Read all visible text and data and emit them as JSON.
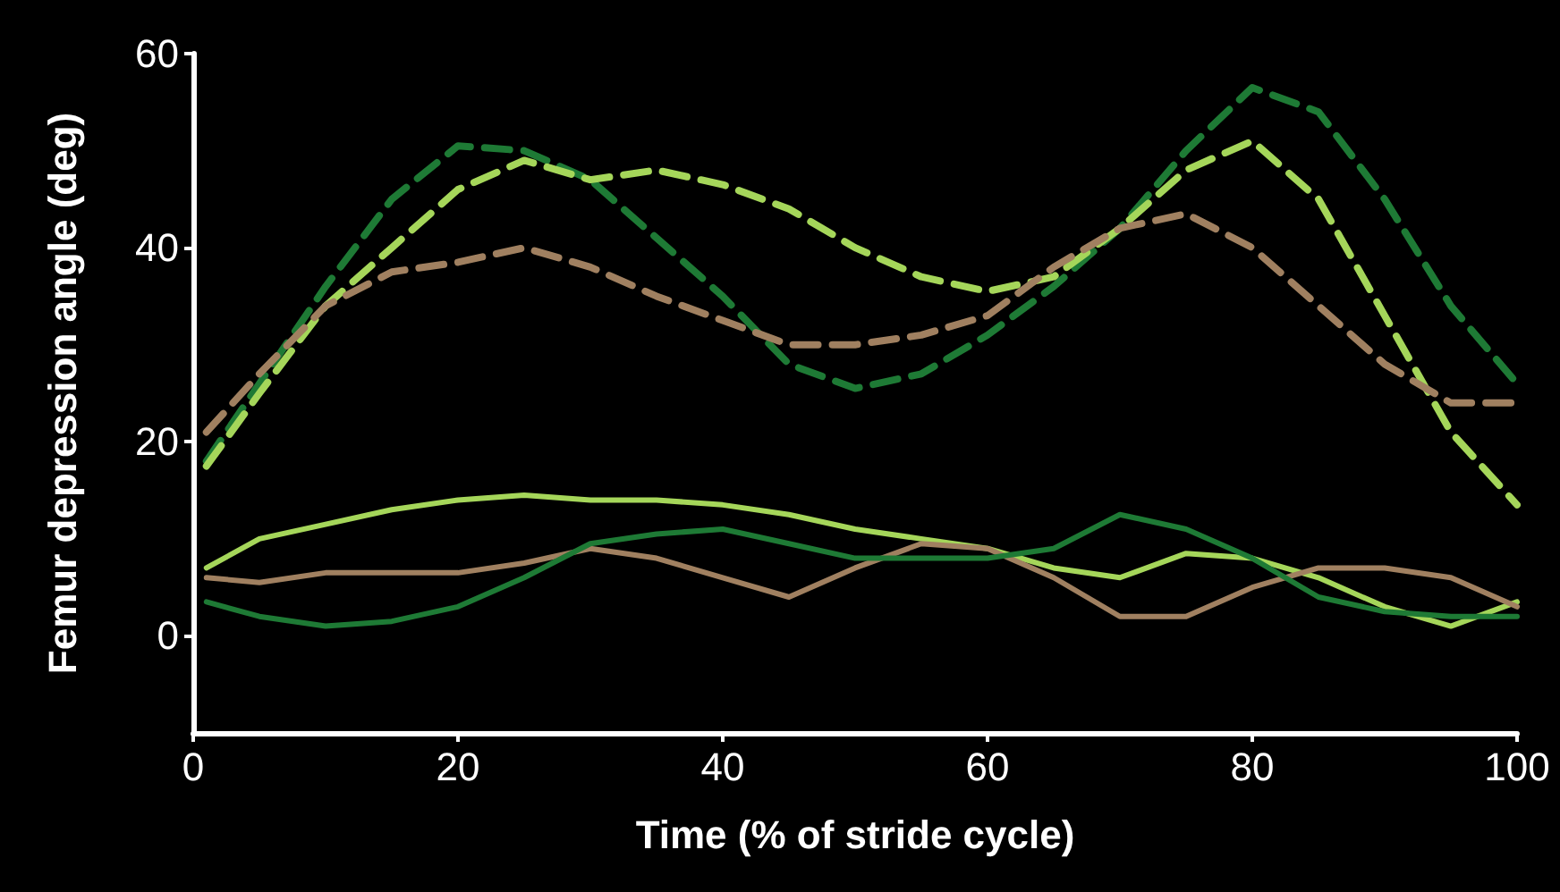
{
  "chart_data": {
    "type": "line",
    "xlabel": "Time (% of stride cycle)",
    "ylabel": "Femur depression angle (deg)",
    "x": [
      1,
      5,
      10,
      15,
      20,
      25,
      30,
      35,
      40,
      45,
      50,
      55,
      60,
      65,
      70,
      75,
      80,
      85,
      90,
      95,
      100
    ],
    "xlim": [
      0,
      100
    ],
    "xticks": [
      0,
      20,
      40,
      60,
      80,
      100
    ],
    "ylim": [
      -10,
      60
    ],
    "yticks": [
      0,
      20,
      40,
      60
    ],
    "grid": false,
    "marker": "none",
    "series": [
      {
        "color": "#1e7a35",
        "line_style": "dashed",
        "values": [
          18,
          26,
          36,
          45,
          50.5,
          50,
          47,
          41,
          35,
          28,
          25.5,
          27,
          31,
          36,
          42,
          50,
          56.5,
          54,
          45,
          34,
          26
        ]
      },
      {
        "color": "#a5d65a",
        "line_style": "dashed",
        "values": [
          17.5,
          25,
          34,
          40,
          46,
          49,
          47,
          48,
          46.5,
          44,
          40,
          37,
          35.5,
          37,
          42,
          48,
          51,
          45,
          33,
          21,
          13.5
        ]
      },
      {
        "color": "#a08060",
        "line_style": "dashed",
        "values": [
          21,
          27,
          34,
          37.5,
          38.5,
          40,
          38,
          35,
          32.5,
          30,
          30,
          31,
          33,
          38,
          42,
          43.5,
          40,
          34,
          28,
          24,
          24
        ]
      },
      {
        "color": "#a5d65a",
        "line_style": "solid",
        "values": [
          7,
          10,
          11.5,
          13,
          14,
          14.5,
          14,
          14,
          13.5,
          12.5,
          11,
          10,
          9,
          7,
          6,
          8.5,
          8,
          6,
          3,
          1,
          3.5
        ]
      },
      {
        "color": "#a08060",
        "line_style": "solid",
        "values": [
          6,
          5.5,
          6.5,
          6.5,
          6.5,
          7.5,
          9,
          8,
          6,
          4,
          7,
          9.5,
          9,
          6,
          2,
          2,
          5,
          7,
          7,
          6,
          3
        ]
      },
      {
        "color": "#1e7a35",
        "line_style": "solid",
        "values": [
          3.5,
          2,
          1,
          1.5,
          3,
          6,
          9.5,
          10.5,
          11,
          9.5,
          8,
          8,
          8,
          9,
          12.5,
          11,
          8,
          4,
          2.5,
          2,
          2
        ]
      }
    ]
  }
}
